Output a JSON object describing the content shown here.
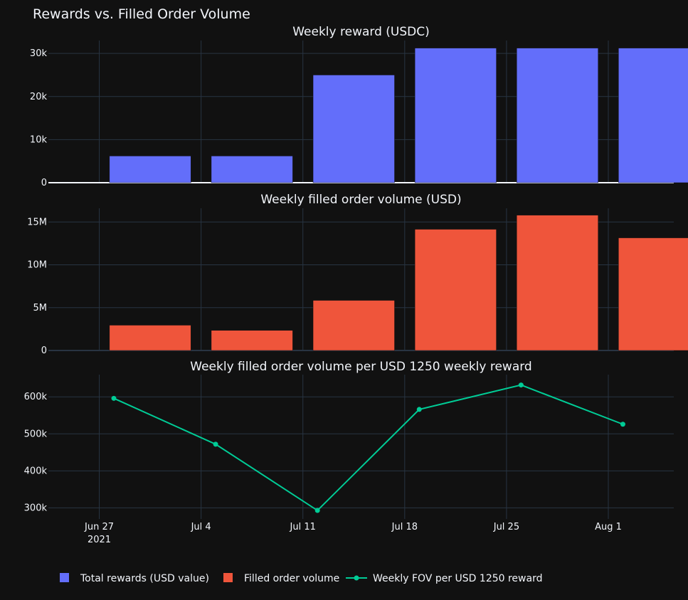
{
  "figure": {
    "title": "Rewards vs. Filled Order Volume"
  },
  "legend": {
    "items": [
      {
        "label": "Total rewards (USD value)",
        "color": "#636efa",
        "marker": "square"
      },
      {
        "label": "Filled order volume",
        "color": "#ef553b",
        "marker": "square"
      },
      {
        "label": "Weekly FOV per USD 1250 reward",
        "color": "#00cc96",
        "marker": "line-dot"
      }
    ]
  },
  "x_axis": {
    "tick_labels": [
      "Jun 27",
      "Jul 4",
      "Jul 11",
      "Jul 18",
      "Jul 25",
      "Aug 1"
    ],
    "year_label": "2021"
  },
  "chart_data": [
    {
      "type": "bar",
      "title": "Weekly reward (USDC)",
      "series_name": "Total rewards (USD value)",
      "color": "#636efa",
      "x": [
        "2021-06-27",
        "2021-07-04",
        "2021-07-11",
        "2021-07-18",
        "2021-07-25",
        "2021-08-01"
      ],
      "values": [
        6200,
        6200,
        25000,
        31250,
        31250,
        31250
      ],
      "ylim": [
        0,
        33000
      ],
      "yticks": [
        0,
        10000,
        20000,
        30000
      ],
      "ytick_labels": [
        "0",
        "10k",
        "20k",
        "30k"
      ]
    },
    {
      "type": "bar",
      "title": "Weekly filled order volume (USD)",
      "series_name": "Filled order volume",
      "color": "#ef553b",
      "x": [
        "2021-06-27",
        "2021-07-04",
        "2021-07-11",
        "2021-07-18",
        "2021-07-25",
        "2021-08-01"
      ],
      "values": [
        2950000,
        2350000,
        5850000,
        14150000,
        15800000,
        13150000
      ],
      "ylim": [
        0,
        16600000
      ],
      "yticks": [
        0,
        5000000,
        10000000,
        15000000
      ],
      "ytick_labels": [
        "0",
        "5M",
        "10M",
        "15M"
      ]
    },
    {
      "type": "line",
      "title": "Weekly filled order volume per USD 1250 weekly reward",
      "series_name": "Weekly FOV per USD 1250 reward",
      "color": "#00cc96",
      "x": [
        "2021-06-28",
        "2021-07-05",
        "2021-07-12",
        "2021-07-19",
        "2021-07-26",
        "2021-08-02"
      ],
      "values": [
        596000,
        472000,
        293000,
        566000,
        632000,
        526000
      ],
      "ylim": [
        270000,
        660000
      ],
      "yticks": [
        300000,
        400000,
        500000,
        600000
      ],
      "ytick_labels": [
        "300k",
        "400k",
        "500k",
        "600k"
      ]
    }
  ]
}
